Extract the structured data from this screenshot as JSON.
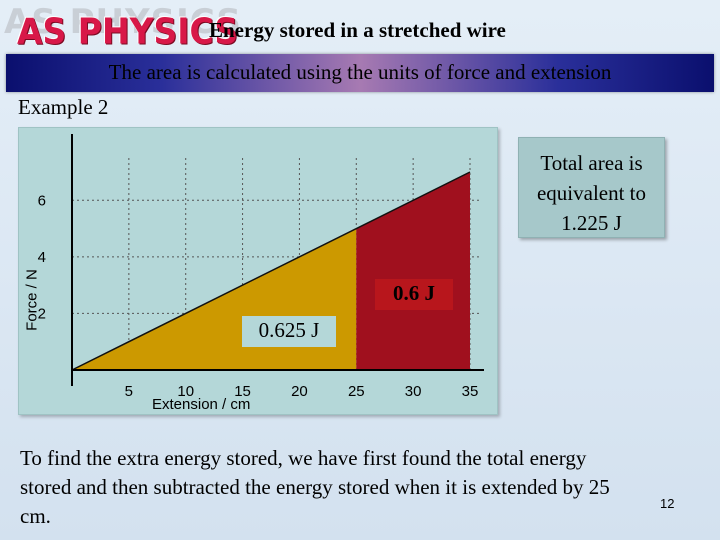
{
  "header": {
    "logo_text": "AS PHYSICS",
    "title": "Energy stored in a stretched wire"
  },
  "subtitle": "The area is calculated using the units of force and extension",
  "example_label": "Example 2",
  "callout": {
    "line1": "Total area is",
    "line2": "equivalent to",
    "line3": "1.225 J"
  },
  "region_labels": {
    "upper": "0.6 J",
    "lower": "0.625 J"
  },
  "chart_data": {
    "type": "area",
    "xlabel": "Extension / cm",
    "ylabel": "Force / N",
    "x_ticks": [
      "5",
      "10",
      "15",
      "20",
      "25",
      "30",
      "35"
    ],
    "y_ticks": [
      "2",
      "4",
      "6"
    ],
    "xlim": [
      0,
      35
    ],
    "ylim": [
      0,
      7
    ],
    "grid": "vertical dashed lines",
    "series": [
      {
        "x": [
          0,
          35
        ],
        "y": [
          0,
          7
        ]
      }
    ],
    "shaded_regions": [
      {
        "from": 0,
        "to": 25,
        "energy": "0.625 J",
        "color": "#cc9900"
      },
      {
        "from": 25,
        "to": 35,
        "energy": "0.6 J",
        "color": "#a0101e"
      }
    ],
    "total_energy": "1.225 J"
  },
  "body_text": "To find the extra energy stored, we have first found the total energy stored and then subtracted the energy stored when it is extended by 25 cm.",
  "page_number": "12"
}
